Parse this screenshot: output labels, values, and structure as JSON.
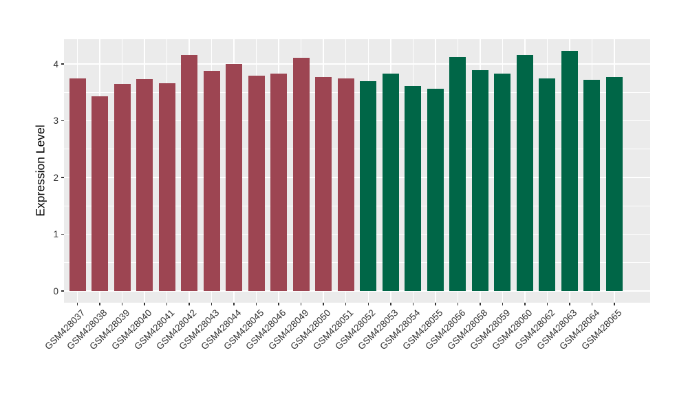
{
  "figure": {
    "background": "#FFFFFF",
    "panel_background": "#EBEBEB",
    "grid_color": "#FFFFFF",
    "tick_color": "#333333",
    "tick_label_color": "#303030"
  },
  "chart_data": {
    "type": "bar",
    "title": "",
    "xlabel": "",
    "ylabel": "Expression Level",
    "ylim": [
      0,
      4.44
    ],
    "yticks": [
      0,
      1,
      2,
      3,
      4
    ],
    "ytick_labels": [
      "0",
      "1",
      "2",
      "3",
      "4"
    ],
    "yminor": [
      0.5,
      1.5,
      2.5,
      3.5
    ],
    "grid": "major and minor horizontal white lines, major vertical white lines at bar centers",
    "legend": "none",
    "categories": [
      "GSM428037",
      "GSM428038",
      "GSM428039",
      "GSM428040",
      "GSM428041",
      "GSM428042",
      "GSM428043",
      "GSM428044",
      "GSM428045",
      "GSM428046",
      "GSM428049",
      "GSM428050",
      "GSM428051",
      "GSM428052",
      "GSM428053",
      "GSM428054",
      "GSM428055",
      "GSM428056",
      "GSM428058",
      "GSM428059",
      "GSM428060",
      "GSM428062",
      "GSM428063",
      "GSM428064",
      "GSM428065"
    ],
    "values": [
      3.75,
      3.43,
      3.65,
      3.73,
      3.66,
      4.16,
      3.88,
      4.0,
      3.79,
      3.83,
      4.11,
      3.77,
      3.74,
      3.7,
      3.83,
      3.61,
      3.56,
      4.12,
      3.89,
      3.83,
      4.16,
      3.74,
      4.23,
      3.72,
      3.77
    ],
    "bar_groups": [
      "maroon",
      "maroon",
      "maroon",
      "maroon",
      "maroon",
      "maroon",
      "maroon",
      "maroon",
      "maroon",
      "maroon",
      "maroon",
      "maroon",
      "maroon",
      "green",
      "green",
      "green",
      "green",
      "green",
      "green",
      "green",
      "green",
      "green",
      "green",
      "green",
      "green"
    ],
    "group_colors": {
      "maroon": "#9D4552",
      "green": "#006647"
    }
  }
}
